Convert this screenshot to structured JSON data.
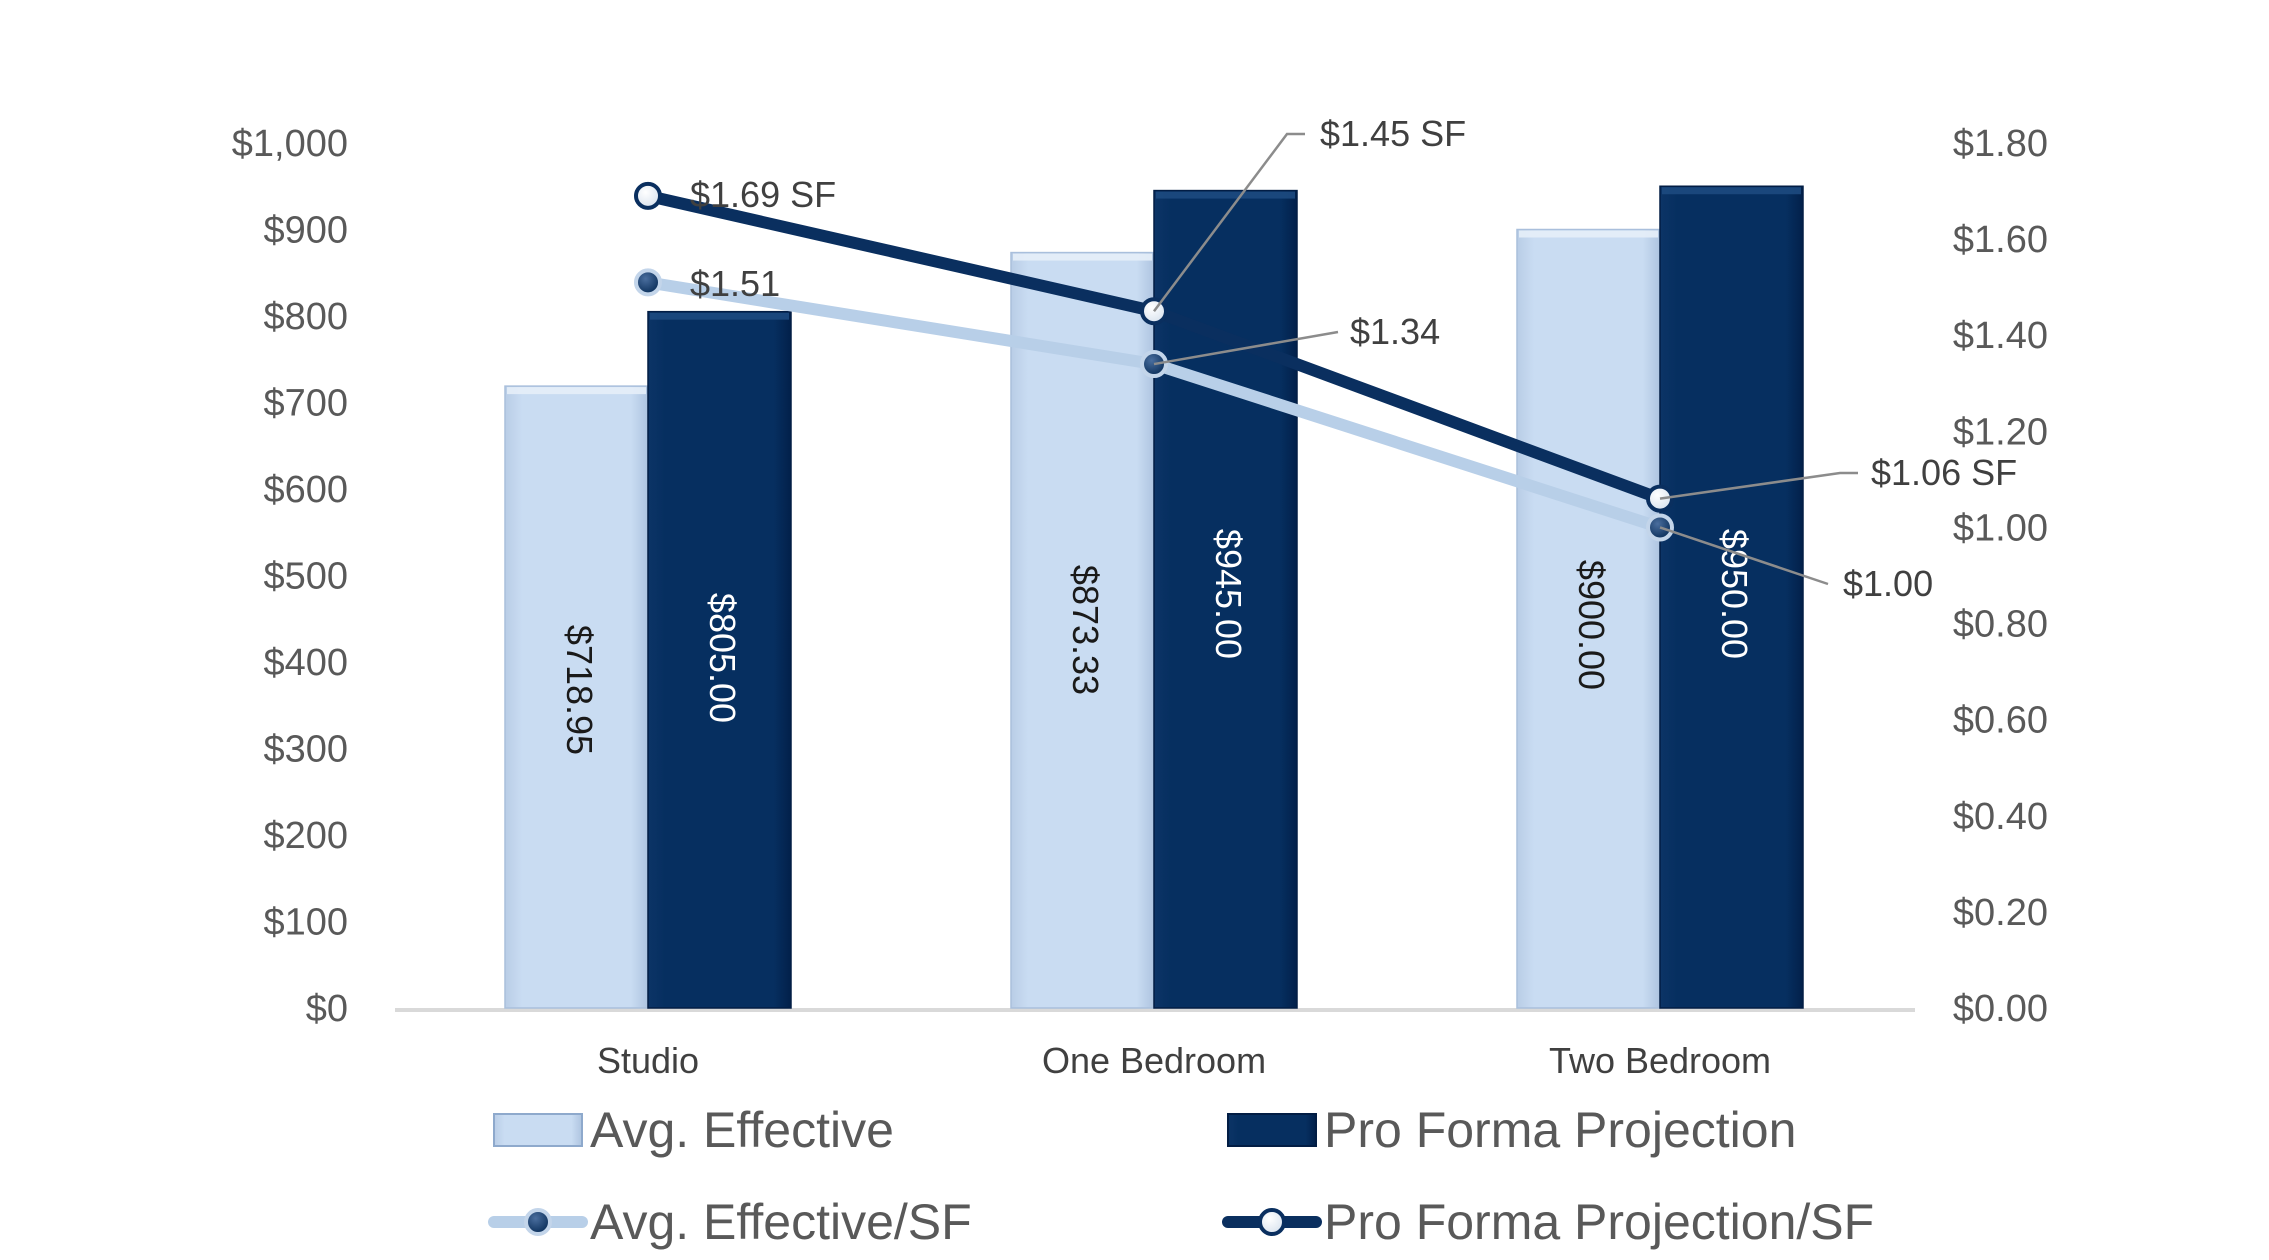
{
  "chart_data": {
    "type": "bar",
    "title": "",
    "categories": [
      "Studio",
      "One Bedroom",
      "Two Bedroom"
    ],
    "y_left": {
      "min": 0,
      "max": 1000,
      "step": 100,
      "ticks": [
        "$0",
        "$100",
        "$200",
        "$300",
        "$400",
        "$500",
        "$600",
        "$700",
        "$800",
        "$900",
        "$1,000"
      ]
    },
    "y_right": {
      "min": 0,
      "max": 1.8,
      "step": 0.2,
      "ticks": [
        "$0.00",
        "$0.20",
        "$0.40",
        "$0.60",
        "$0.80",
        "$1.00",
        "$1.20",
        "$1.40",
        "$1.60",
        "$1.80"
      ]
    },
    "series": [
      {
        "name": "Avg. Effective",
        "kind": "bar",
        "axis": "left",
        "color": "#c5d9f1",
        "label_color": "#1a1a1a",
        "values": [
          718.95,
          873.33,
          900.0
        ],
        "labels": [
          "$718.95",
          "$873.33",
          "$900.00"
        ]
      },
      {
        "name": "Pro Forma Projection",
        "kind": "bar",
        "axis": "left",
        "color": "#052d5e",
        "label_color": "#ffffff",
        "values": [
          805.0,
          945.0,
          950.0
        ],
        "labels": [
          "$805.00",
          "$945.00",
          "$950.00"
        ]
      },
      {
        "name": "Avg. Effective/SF",
        "kind": "line",
        "axis": "right",
        "color": "#b8cfe8",
        "marker_fill": "#0a2f5f",
        "values": [
          1.51,
          1.34,
          1.0
        ],
        "labels": [
          "$1.51",
          "$1.34",
          "$1.00"
        ]
      },
      {
        "name": "Pro Forma Projection/SF",
        "kind": "line",
        "axis": "right",
        "color": "#0a2f5f",
        "marker_fill": "#ffffff",
        "values": [
          1.69,
          1.45,
          1.06
        ],
        "labels": [
          "$1.69 SF",
          "$1.45 SF",
          "$1.06 SF"
        ]
      }
    ],
    "legend": {
      "placement": "bottom",
      "entries": [
        "Avg. Effective",
        "Pro Forma Projection",
        "Avg. Effective/SF",
        "Pro Forma Projection/SF"
      ]
    },
    "colors": {
      "axis_line": "#d9d9d9",
      "leader_line": "#8c8c8c"
    }
  }
}
